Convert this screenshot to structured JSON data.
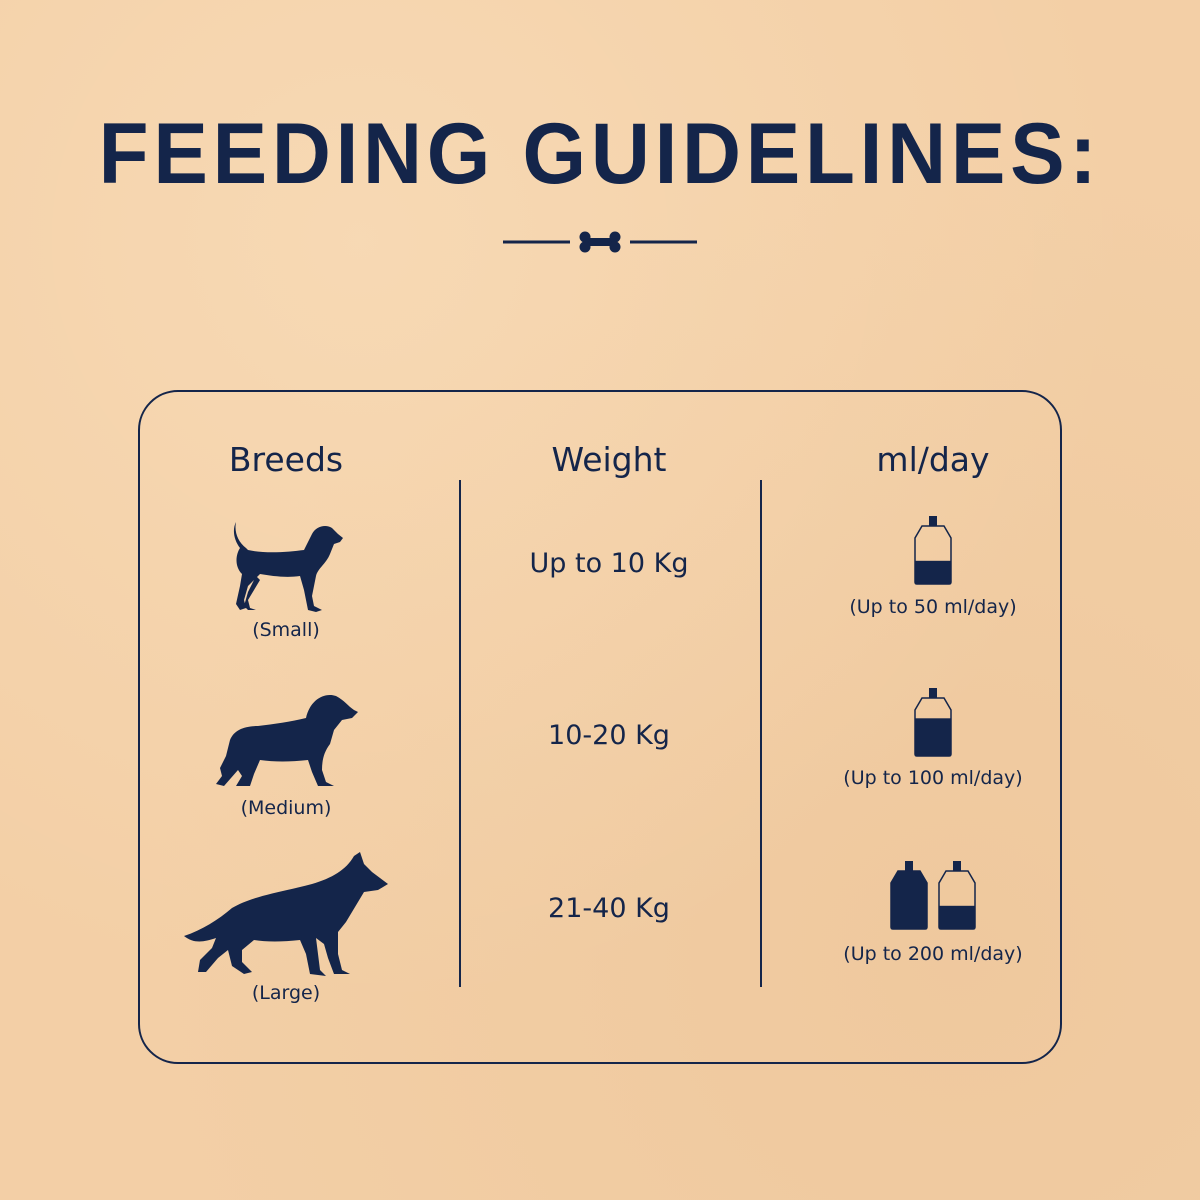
{
  "title": "FEEDING GUIDELINES:",
  "colors": {
    "background": "#f3cfa6",
    "navy": "#14254a"
  },
  "divider_icon": "bone-icon",
  "table": {
    "headers": {
      "breeds": "Breeds",
      "weight": "Weight",
      "ml_day": "ml/day"
    },
    "rows": [
      {
        "breed_icon": "beagle-dog-icon",
        "breed": "(Small)",
        "weight": "Up to 10 Kg",
        "amount": "(Up to 50 ml/day)",
        "bottles": [
          0.4
        ]
      },
      {
        "breed_icon": "spaniel-dog-icon",
        "breed": "(Medium)",
        "weight": "10-20 Kg",
        "amount": "(Up to 100 ml/day)",
        "bottles": [
          0.65
        ]
      },
      {
        "breed_icon": "shepherd-dog-icon",
        "breed": "(Large)",
        "weight": "21-40 Kg",
        "amount": "(Up to 200 ml/day)",
        "bottles": [
          1.0,
          0.4
        ]
      }
    ]
  }
}
